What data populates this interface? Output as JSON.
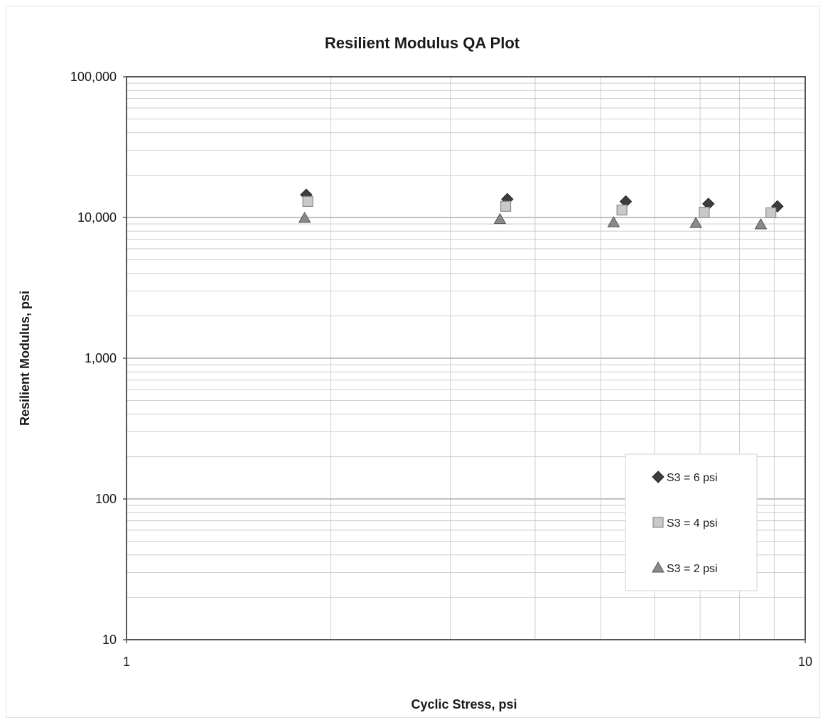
{
  "chart_data": {
    "type": "scatter",
    "title": "Resilient Modulus QA Plot",
    "xlabel": "Cyclic Stress,  psi",
    "ylabel": "Resilient Modulus,  psi",
    "x_scale": "log",
    "y_scale": "log",
    "xlim": [
      1,
      10
    ],
    "ylim": [
      10,
      100000
    ],
    "x_ticks": [
      {
        "value": 1,
        "label": "1"
      },
      {
        "value": 10,
        "label": "10"
      }
    ],
    "y_ticks": [
      {
        "value": 100000,
        "label": "100,000"
      },
      {
        "value": 10000,
        "label": "10,000"
      },
      {
        "value": 1000,
        "label": "1,000"
      },
      {
        "value": 100,
        "label": "100"
      },
      {
        "value": 10,
        "label": "10"
      }
    ],
    "grid": true,
    "legend_position": "bottom-right",
    "series": [
      {
        "name": "S3  = 6 psi",
        "marker": "diamond",
        "color": "#3d3d3d",
        "points": [
          [
            1.84,
            14500
          ],
          [
            3.64,
            13500
          ],
          [
            5.44,
            13000
          ],
          [
            7.2,
            12500
          ],
          [
            9.1,
            12000
          ]
        ]
      },
      {
        "name": "S3  = 4 psi",
        "marker": "square",
        "color": "#c9c9c9",
        "points": [
          [
            1.85,
            13000
          ],
          [
            3.62,
            12000
          ],
          [
            5.37,
            11300
          ],
          [
            7.1,
            10900
          ],
          [
            8.9,
            10800
          ]
        ]
      },
      {
        "name": "S3  = 2 psi",
        "marker": "triangle",
        "color": "#8a8a8a",
        "points": [
          [
            1.83,
            9900
          ],
          [
            3.55,
            9700
          ],
          [
            5.22,
            9200
          ],
          [
            6.9,
            9100
          ],
          [
            8.6,
            8900
          ]
        ]
      }
    ]
  }
}
